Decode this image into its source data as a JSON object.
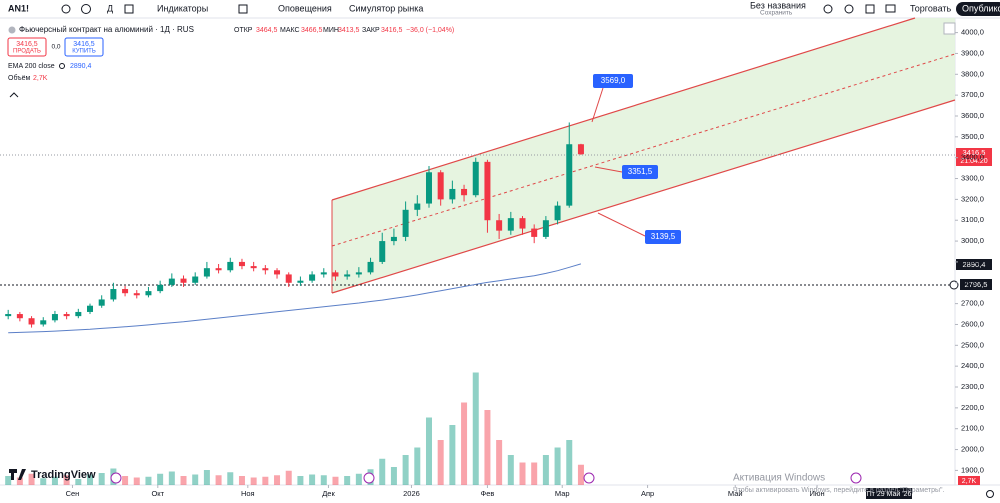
{
  "toolbar": {
    "symbol": "AN1!",
    "interval": "Д",
    "indicators": "Индикаторы",
    "alerts": "Оповещения",
    "replay": "Симулятор рынка",
    "layout_name": "Без названия",
    "save": "Сохранить",
    "trade": "Торговать",
    "publish": "Опубликовать"
  },
  "legend": {
    "title": "Фьючерсный контракт на алюминий · 1Д · RUS",
    "open_label": "ОТКР",
    "open": "3464,5",
    "high_label": "МАКС",
    "high": "3466,5",
    "low_label": "МИН",
    "low": "3413,5",
    "close_label": "ЗАКР",
    "close": "3416,5",
    "change": "−36,0 (−1,04%)",
    "sell_price": "3416,5",
    "sell": "ПРОДАТЬ",
    "spread": "0,0",
    "buy_price": "3416,5",
    "buy": "КУПИТЬ",
    "ema_label": "EMA 200 close",
    "ema_value": "2890,4",
    "volume_label": "Объём",
    "volume_value": "2,7K"
  },
  "annotations": {
    "top": "3569,0",
    "mid": "3351,5",
    "bottom": "3139,5",
    "countdown": "21:04:20",
    "level": "2796,5",
    "date": "Пт 29 Май '26"
  },
  "branding": "TradingView",
  "watermark": {
    "title": "Активация Windows",
    "text": "Чтобы активировать Windows, перейдите в раздел \"Параметры\"."
  },
  "chart_data": {
    "type": "candlestick",
    "ylim": [
      1830,
      4070
    ],
    "yticks": [
      {
        "value": 4000,
        "label": "4000,0"
      },
      {
        "value": 3900,
        "label": "3900,0"
      },
      {
        "value": 3800,
        "label": "3800,0"
      },
      {
        "value": 3700,
        "label": "3700,0"
      },
      {
        "value": 3600,
        "label": "3600,0"
      },
      {
        "value": 3500,
        "label": "3500,0"
      },
      {
        "value": 3400,
        "label": "3400,0"
      },
      {
        "value": 3300,
        "label": "3300,0"
      },
      {
        "value": 3200,
        "label": "3200,0"
      },
      {
        "value": 3100,
        "label": "3100,0"
      },
      {
        "value": 3000,
        "label": "3000,0"
      },
      {
        "value": 2900,
        "label": "2900,0"
      },
      {
        "value": 2800,
        "label": "2800,0"
      },
      {
        "value": 2700,
        "label": "2700,0"
      },
      {
        "value": 2600,
        "label": "2600,0"
      },
      {
        "value": 2500,
        "label": "2500,0"
      },
      {
        "value": 2400,
        "label": "2400,0"
      },
      {
        "value": 2300,
        "label": "2300,0"
      },
      {
        "value": 2200,
        "label": "2200,0"
      },
      {
        "value": 2100,
        "label": "2100,0"
      },
      {
        "value": 2000,
        "label": "2000,0"
      },
      {
        "value": 1900,
        "label": "1900,0"
      }
    ],
    "xlim": [
      -0.7,
      81
    ],
    "xticks": [
      {
        "value": 5.5,
        "label": "Сен"
      },
      {
        "value": 12.8,
        "label": "Окт"
      },
      {
        "value": 20.5,
        "label": "Ноя"
      },
      {
        "value": 27.4,
        "label": "Дек"
      },
      {
        "value": 34.5,
        "label": "2026"
      },
      {
        "value": 41,
        "label": "Фев"
      },
      {
        "value": 47.4,
        "label": "Мар"
      },
      {
        "value": 54.7,
        "label": "Апр"
      },
      {
        "value": 62.2,
        "label": "Май"
      },
      {
        "value": 69.2,
        "label": "Июн"
      }
    ],
    "up_color": "#089981",
    "down_color": "#f23645",
    "ema_color": "#5b7fc7",
    "candles": [
      [
        2640,
        2670,
        2625,
        2650
      ],
      [
        2650,
        2660,
        2615,
        2630
      ],
      [
        2630,
        2640,
        2585,
        2600
      ],
      [
        2600,
        2635,
        2590,
        2620
      ],
      [
        2620,
        2665,
        2610,
        2650
      ],
      [
        2650,
        2660,
        2625,
        2640
      ],
      [
        2640,
        2675,
        2630,
        2660
      ],
      [
        2660,
        2700,
        2650,
        2690
      ],
      [
        2690,
        2740,
        2680,
        2720
      ],
      [
        2720,
        2800,
        2710,
        2770
      ],
      [
        2770,
        2785,
        2735,
        2750
      ],
      [
        2750,
        2765,
        2725,
        2740
      ],
      [
        2740,
        2780,
        2730,
        2760
      ],
      [
        2760,
        2810,
        2750,
        2790
      ],
      [
        2790,
        2845,
        2780,
        2820
      ],
      [
        2820,
        2835,
        2780,
        2800
      ],
      [
        2800,
        2850,
        2790,
        2830
      ],
      [
        2830,
        2900,
        2820,
        2870
      ],
      [
        2870,
        2890,
        2845,
        2860
      ],
      [
        2860,
        2920,
        2850,
        2900
      ],
      [
        2900,
        2915,
        2865,
        2880
      ],
      [
        2880,
        2900,
        2855,
        2870
      ],
      [
        2870,
        2885,
        2840,
        2860
      ],
      [
        2860,
        2870,
        2820,
        2840
      ],
      [
        2840,
        2850,
        2780,
        2800
      ],
      [
        2800,
        2830,
        2785,
        2810
      ],
      [
        2810,
        2855,
        2800,
        2840
      ],
      [
        2840,
        2870,
        2825,
        2850
      ],
      [
        2850,
        2860,
        2810,
        2830
      ],
      [
        2830,
        2860,
        2815,
        2840
      ],
      [
        2840,
        2875,
        2825,
        2850
      ],
      [
        2850,
        2920,
        2840,
        2900
      ],
      [
        2900,
        3040,
        2890,
        3000
      ],
      [
        3000,
        3060,
        2980,
        3020
      ],
      [
        3020,
        3190,
        3000,
        3150
      ],
      [
        3150,
        3220,
        3120,
        3180
      ],
      [
        3180,
        3360,
        3160,
        3330
      ],
      [
        3330,
        3340,
        3170,
        3200
      ],
      [
        3200,
        3290,
        3180,
        3250
      ],
      [
        3250,
        3270,
        3190,
        3220
      ],
      [
        3220,
        3400,
        3210,
        3380
      ],
      [
        3380,
        3390,
        3040,
        3100
      ],
      [
        3100,
        3130,
        3010,
        3050
      ],
      [
        3050,
        3140,
        3030,
        3110
      ],
      [
        3110,
        3120,
        3030,
        3060
      ],
      [
        3060,
        3080,
        2990,
        3020
      ],
      [
        3020,
        3120,
        3010,
        3100
      ],
      [
        3100,
        3190,
        3080,
        3170
      ],
      [
        3170,
        3569,
        3160,
        3464.5
      ],
      [
        3464.5,
        3466.5,
        3413.5,
        3416.5
      ]
    ],
    "volumes": [
      1.2,
      1.0,
      1.5,
      0.9,
      1.1,
      1.3,
      0.8,
      1.4,
      1.6,
      2.2,
      1.2,
      1.0,
      1.1,
      1.5,
      1.8,
      1.2,
      1.4,
      2.0,
      1.3,
      1.7,
      1.2,
      1.0,
      1.1,
      1.3,
      1.9,
      1.2,
      1.4,
      1.3,
      1.1,
      1.2,
      1.5,
      2.1,
      3.5,
      2.4,
      4.0,
      5.0,
      9.0,
      6.0,
      8.0,
      11.0,
      15.0,
      10.0,
      6.0,
      4.0,
      3.0,
      3.0,
      4.0,
      5.0,
      6.0,
      2.7
    ],
    "ema": [
      2560,
      2562,
      2564,
      2566,
      2568,
      2571,
      2574,
      2577,
      2581,
      2585,
      2589,
      2593,
      2598,
      2603,
      2608,
      2613,
      2619,
      2625,
      2631,
      2637,
      2643,
      2649,
      2655,
      2661,
      2667,
      2673,
      2679,
      2685,
      2691,
      2697,
      2703,
      2710,
      2717,
      2725,
      2733,
      2742,
      2752,
      2762,
      2772,
      2782,
      2792,
      2802,
      2810,
      2818,
      2826,
      2834,
      2845,
      2858,
      2874,
      2890.4
    ]
  }
}
